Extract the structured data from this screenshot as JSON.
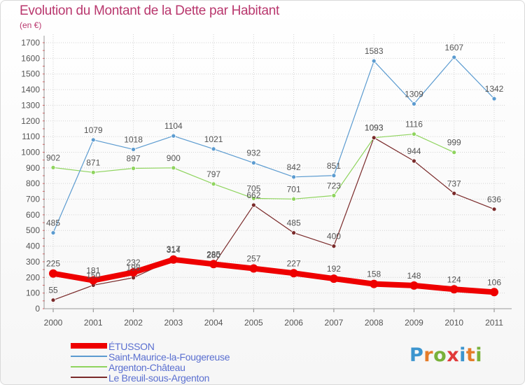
{
  "title": "Evolution du Montant de la Dette par Habitant",
  "subtitle": "(en €)",
  "brand": {
    "text": "Proxiti",
    "letters": [
      "P",
      "r",
      "o",
      "x",
      "i",
      "t",
      "i"
    ],
    "colors": [
      "#3c95cf",
      "#e57c2a",
      "#79b13a",
      "#e13a3a",
      "#3c95cf",
      "#e57c2a",
      "#79b13a"
    ]
  },
  "chart_data": {
    "type": "line",
    "title": "Evolution du Montant de la Dette par Habitant",
    "ylabel": "(en €)",
    "xlabel": "",
    "x": [
      "2000",
      "2001",
      "2002",
      "2003",
      "2004",
      "2005",
      "2006",
      "2007",
      "2008",
      "2009",
      "2010",
      "2011"
    ],
    "yticks": [
      0,
      100,
      200,
      300,
      400,
      500,
      600,
      700,
      800,
      900,
      1000,
      1100,
      1200,
      1300,
      1400,
      1500,
      1600,
      1700
    ],
    "ylim": [
      0,
      1700
    ],
    "grid": true,
    "legend": "bottom-left",
    "series": [
      {
        "name": "ÉTUSSON",
        "color": "#ee0000",
        "values": [
          225,
          181,
          232,
          314,
          285,
          257,
          227,
          192,
          158,
          148,
          124,
          106
        ]
      },
      {
        "name": "Saint-Maurice-la-Fougereuse",
        "color": "#5b9bd0",
        "values": [
          485,
          1079,
          1018,
          1104,
          1021,
          932,
          842,
          851,
          1583,
          1309,
          1607,
          1342
        ]
      },
      {
        "name": "Argenton-Château",
        "color": "#8fd45e",
        "values": [
          902,
          871,
          897,
          900,
          797,
          705,
          701,
          723,
          1093,
          1116,
          999,
          null
        ]
      },
      {
        "name": "Le Breuil-sous-Argenton",
        "color": "#7a2a2a",
        "values": [
          55,
          150,
          198,
          317,
          280,
          662,
          485,
          400,
          1093,
          944,
          737,
          636
        ]
      }
    ]
  }
}
